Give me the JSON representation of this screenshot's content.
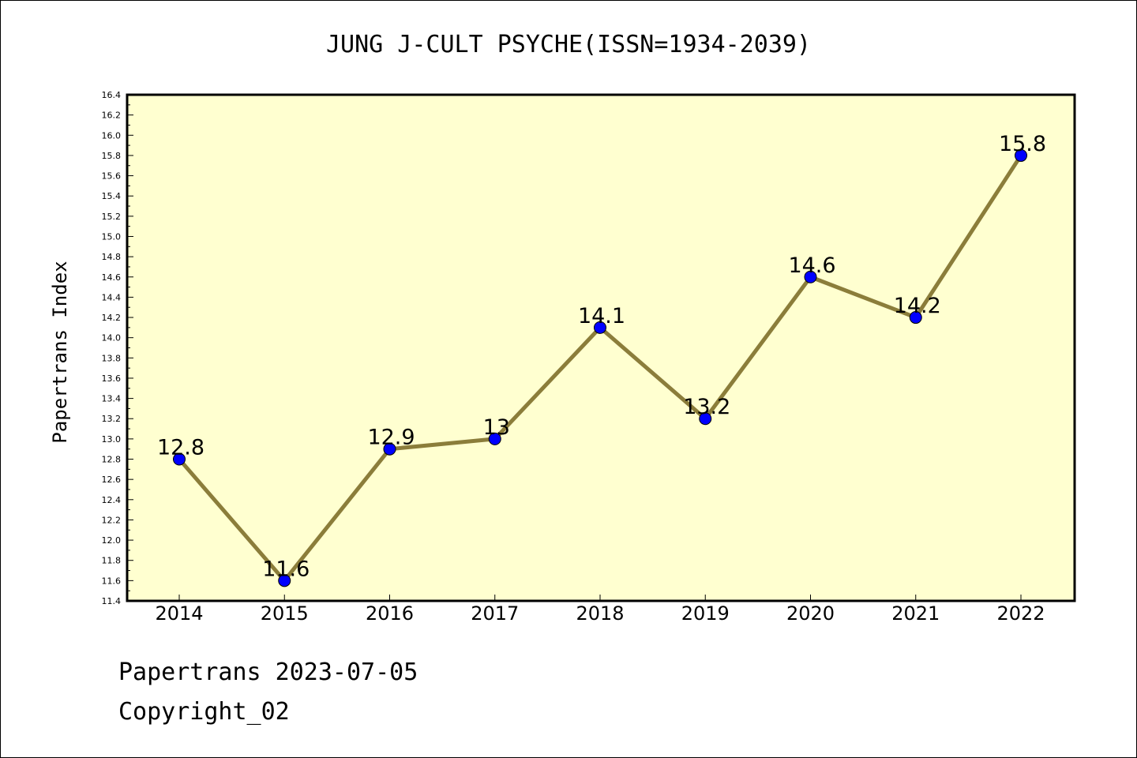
{
  "chart_data": {
    "type": "line",
    "title": "JUNG J-CULT PSYCHE(ISSN=1934-2039)",
    "ylabel": "Papertrans Index",
    "xlabel": "",
    "categories": [
      "2014",
      "2015",
      "2016",
      "2017",
      "2018",
      "2019",
      "2020",
      "2021",
      "2022"
    ],
    "values": [
      12.8,
      11.6,
      12.9,
      13,
      14.1,
      13.2,
      14.6,
      14.2,
      15.8
    ],
    "point_labels": [
      "12.8",
      "11.6",
      "12.9",
      "13",
      "14.1",
      "13.2",
      "14.6",
      "14.2",
      "15.8"
    ],
    "ylim": [
      11.4,
      16.4
    ],
    "ytick_step": 0.2,
    "yticks": [
      "11.4",
      "11.6",
      "11.8",
      "12.0",
      "12.2",
      "12.4",
      "12.6",
      "12.8",
      "13.0",
      "13.2",
      "13.4",
      "13.6",
      "13.8",
      "14.0",
      "14.2",
      "14.4",
      "14.6",
      "14.8",
      "15.0",
      "15.2",
      "15.4",
      "15.6",
      "15.8",
      "16.0",
      "16.2",
      "16.4"
    ],
    "grid": false,
    "legend": "none",
    "colors": {
      "plot_background": "#ffffd0",
      "line": "#8b7d3a",
      "marker": "#0000ff",
      "axis": "#000000"
    }
  },
  "footer": {
    "line1": "Papertrans 2023-07-05",
    "line2": "Copyright_02"
  }
}
